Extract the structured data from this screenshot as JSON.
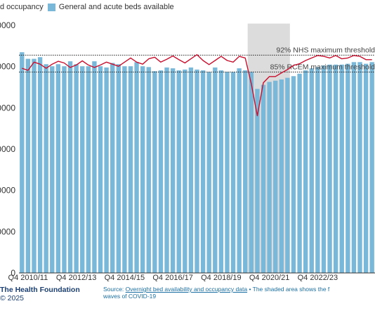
{
  "legend": {
    "items": [
      {
        "label": "d occupancy",
        "color": "#c8102e"
      },
      {
        "label": "General and acute beds available",
        "color": "#7ab8d9"
      }
    ]
  },
  "footer": {
    "org_name": "The Health Foundation",
    "copyright": "© 2025",
    "source_label": "Source:",
    "source_link": "Overnight bed availability and occupancy data",
    "bullet": " • ",
    "note_line1": "The shaded area shows the f",
    "note_line2": "waves of COVID-19"
  },
  "chart_data": {
    "type": "bar",
    "ytick_labels": [
      "0",
      "0000",
      "0000",
      "0000",
      "0000",
      "0000",
      "0000"
    ],
    "ytick_values": [
      0,
      1,
      2,
      3,
      4,
      5,
      6
    ],
    "ylim": [
      0,
      6
    ],
    "xtick_labels": [
      {
        "label": "Q4 2010/11",
        "index": 1
      },
      {
        "label": "Q4 2012/13",
        "index": 9
      },
      {
        "label": "Q4 2014/15",
        "index": 17
      },
      {
        "label": "Q4 2016/17",
        "index": 25
      },
      {
        "label": "Q4 2018/19",
        "index": 33
      },
      {
        "label": "Q4 2020/21",
        "index": 41
      },
      {
        "label": "Q4 2022/23",
        "index": 49
      }
    ],
    "shaded_region": {
      "start_index": 38,
      "end_index": 44
    },
    "thresholds": [
      {
        "label": "92% NHS maximum threshold",
        "value": 5.27
      },
      {
        "label": "85% RCEM maximum threshold",
        "value": 4.86
      }
    ],
    "series": [
      {
        "type": "bar",
        "color": "#7ab8d9",
        "values": [
          5.34,
          5.18,
          5.18,
          5.22,
          5.05,
          5.0,
          5.05,
          5.0,
          5.12,
          5.05,
          5.0,
          5.0,
          5.12,
          5.0,
          4.97,
          5.08,
          5.05,
          5.0,
          5.0,
          5.1,
          5.0,
          4.98,
          4.88,
          4.9,
          4.97,
          4.95,
          4.9,
          4.92,
          4.97,
          4.92,
          4.9,
          4.86,
          4.97,
          4.9,
          4.86,
          4.86,
          4.95,
          4.9,
          4.86,
          4.45,
          4.55,
          4.62,
          4.65,
          4.68,
          4.72,
          4.76,
          4.82,
          4.9,
          4.95,
          4.98,
          5.02,
          5.04,
          5.04,
          5.04,
          5.06,
          5.1,
          5.1,
          5.06,
          5.1
        ]
      },
      {
        "type": "line",
        "color": "#c8102e",
        "values": [
          4.95,
          4.9,
          5.1,
          5.05,
          4.95,
          5.05,
          5.12,
          5.08,
          4.97,
          5.03,
          5.13,
          5.03,
          4.97,
          5.03,
          5.1,
          5.05,
          5.0,
          5.1,
          5.2,
          5.1,
          5.05,
          5.18,
          5.22,
          5.1,
          5.17,
          5.25,
          5.16,
          5.08,
          5.18,
          5.28,
          5.14,
          5.04,
          5.14,
          5.24,
          5.14,
          5.1,
          5.24,
          5.2,
          4.58,
          3.8,
          4.6,
          4.75,
          4.75,
          4.84,
          4.92,
          5.02,
          5.06,
          5.14,
          5.2,
          5.26,
          5.24,
          5.2,
          5.26,
          5.18,
          5.2,
          5.26,
          5.24,
          5.16,
          5.16
        ]
      }
    ]
  }
}
